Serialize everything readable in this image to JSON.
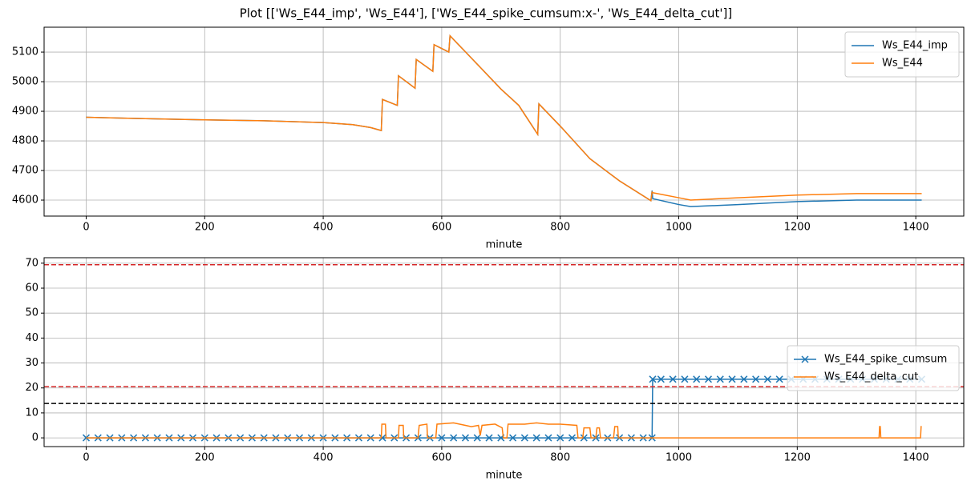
{
  "title": "Plot [['Ws_E44_imp', 'Ws_E44'], ['Ws_E44_spike_cumsum:x-', 'Ws_E44_delta_cut']]",
  "chart_data": [
    {
      "type": "line",
      "xlabel": "minute",
      "xlim": [
        -71,
        1481
      ],
      "ylim": [
        4546,
        5184
      ],
      "xticks": [
        0,
        200,
        400,
        600,
        800,
        1000,
        1200,
        1400
      ],
      "yticks": [
        4600,
        4700,
        4800,
        4900,
        5000,
        5100
      ],
      "grid": true,
      "legend": "upper right",
      "series": [
        {
          "name": "Ws_E44_imp",
          "color": "#1f77b4",
          "x": [
            0,
            100,
            200,
            300,
            400,
            450,
            480,
            498,
            500,
            525,
            527,
            555,
            557,
            585,
            587,
            612,
            614,
            650,
            700,
            730,
            762,
            764,
            800,
            850,
            900,
            953,
            955,
            956,
            1000,
            1020,
            1100,
            1200,
            1300,
            1410
          ],
          "values": [
            4880,
            4875,
            4871,
            4868,
            4862,
            4855,
            4845,
            4835,
            4940,
            4920,
            5020,
            4978,
            5075,
            5035,
            5125,
            5100,
            5155,
            5080,
            4975,
            4920,
            4822,
            4925,
            4850,
            4740,
            4665,
            4598,
            4632,
            4605,
            4585,
            4578,
            4585,
            4595,
            4600,
            4600
          ]
        },
        {
          "name": "Ws_E44",
          "color": "#ff7f0e",
          "x": [
            0,
            100,
            200,
            300,
            400,
            450,
            480,
            498,
            500,
            525,
            527,
            555,
            557,
            585,
            587,
            612,
            614,
            650,
            700,
            730,
            762,
            764,
            800,
            850,
            900,
            953,
            955,
            956,
            1000,
            1020,
            1100,
            1200,
            1300,
            1410
          ],
          "values": [
            4880,
            4875,
            4871,
            4868,
            4862,
            4855,
            4845,
            4835,
            4940,
            4920,
            5020,
            4978,
            5075,
            5035,
            5125,
            5100,
            5155,
            5080,
            4975,
            4920,
            4822,
            4925,
            4850,
            4740,
            4665,
            4598,
            4627,
            4625,
            4608,
            4600,
            4608,
            4617,
            4622,
            4622
          ]
        }
      ]
    },
    {
      "type": "line",
      "xlabel": "minute",
      "xlim": [
        -71,
        1481
      ],
      "ylim": [
        -3.5,
        72.2
      ],
      "xticks": [
        0,
        200,
        400,
        600,
        800,
        1000,
        1200,
        1400
      ],
      "yticks": [
        0,
        10,
        20,
        30,
        40,
        50,
        60,
        70
      ],
      "grid": true,
      "legend": "center right",
      "hlines": [
        {
          "value": 69.4,
          "color": "#d62728"
        },
        {
          "value": 20.5,
          "color": "#d62728"
        },
        {
          "value": 13.8,
          "color": "#000000"
        }
      ],
      "series": [
        {
          "name": "Ws_E44_spike_cumsum",
          "color": "#1f77b4",
          "marker": "x",
          "x": [
            0,
            20,
            40,
            60,
            80,
            100,
            120,
            140,
            160,
            180,
            200,
            220,
            240,
            260,
            280,
            300,
            320,
            340,
            360,
            380,
            400,
            420,
            440,
            460,
            480,
            500,
            520,
            540,
            560,
            580,
            600,
            620,
            640,
            660,
            680,
            700,
            720,
            740,
            760,
            780,
            800,
            820,
            840,
            860,
            880,
            900,
            920,
            940,
            955,
            956,
            970,
            990,
            1010,
            1030,
            1050,
            1070,
            1090,
            1110,
            1130,
            1150,
            1170,
            1190,
            1210,
            1230,
            1250,
            1270,
            1290,
            1310,
            1330,
            1350,
            1370,
            1390,
            1410
          ],
          "values": [
            0,
            0,
            0,
            0,
            0,
            0,
            0,
            0,
            0,
            0,
            0,
            0,
            0,
            0,
            0,
            0,
            0,
            0,
            0,
            0,
            0,
            0,
            0,
            0,
            0,
            0,
            0,
            0,
            0,
            0,
            0,
            0,
            0,
            0,
            0,
            0,
            0,
            0,
            0,
            0,
            0,
            0,
            0,
            0,
            0,
            0,
            0,
            0,
            0,
            23.5,
            23.5,
            23.5,
            23.5,
            23.5,
            23.5,
            23.5,
            23.5,
            23.5,
            23.5,
            23.5,
            23.5,
            23.5,
            23.5,
            23.5,
            23.5,
            23.5,
            23.5,
            23.5,
            23.5,
            23.5,
            23.5,
            23.5,
            23.5
          ]
        },
        {
          "name": "Ws_E44_delta_cut",
          "color": "#ff7f0e",
          "x": [
            0,
            498,
            499,
            505,
            506,
            527,
            528,
            535,
            536,
            560,
            562,
            575,
            576,
            590,
            592,
            620,
            640,
            650,
            662,
            665,
            668,
            690,
            702,
            704,
            710,
            712,
            740,
            760,
            780,
            800,
            828,
            830,
            838,
            840,
            850,
            852,
            860,
            862,
            866,
            868,
            890,
            892,
            897,
            898,
            1338,
            1339,
            1340,
            1341,
            1408,
            1409,
            1410
          ],
          "values": [
            0,
            0,
            5.5,
            5.5,
            0,
            0,
            5,
            5,
            0,
            0,
            5,
            5.5,
            0,
            0,
            5.5,
            6,
            5,
            4.5,
            5,
            1,
            5,
            5.5,
            4,
            0,
            0,
            5.5,
            5.5,
            6,
            5.5,
            5.5,
            5,
            0,
            0,
            4,
            4,
            0,
            0,
            4,
            4,
            0,
            0,
            4.5,
            4.5,
            0,
            0,
            4.5,
            4.5,
            0,
            0,
            4.5,
            4.5
          ]
        }
      ]
    }
  ]
}
